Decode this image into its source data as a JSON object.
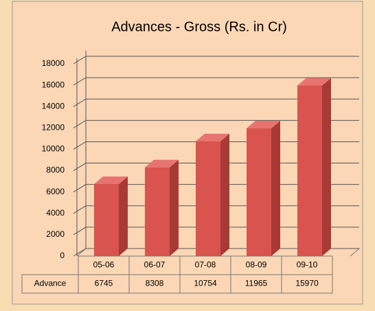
{
  "chart_data": {
    "type": "bar3d",
    "title": "Advances - Gross (Rs. in Cr)",
    "categories": [
      "05-06",
      "06-07",
      "07-08",
      "08-09",
      "09-10"
    ],
    "series": [
      {
        "name": "Advance",
        "color": "#d9534f",
        "values": [
          6745,
          8308,
          10754,
          11965,
          15970
        ]
      }
    ],
    "ylim": [
      0,
      18000
    ],
    "yticks": [
      0,
      2000,
      4000,
      6000,
      8000,
      10000,
      12000,
      14000,
      16000,
      18000
    ],
    "grid": true
  }
}
